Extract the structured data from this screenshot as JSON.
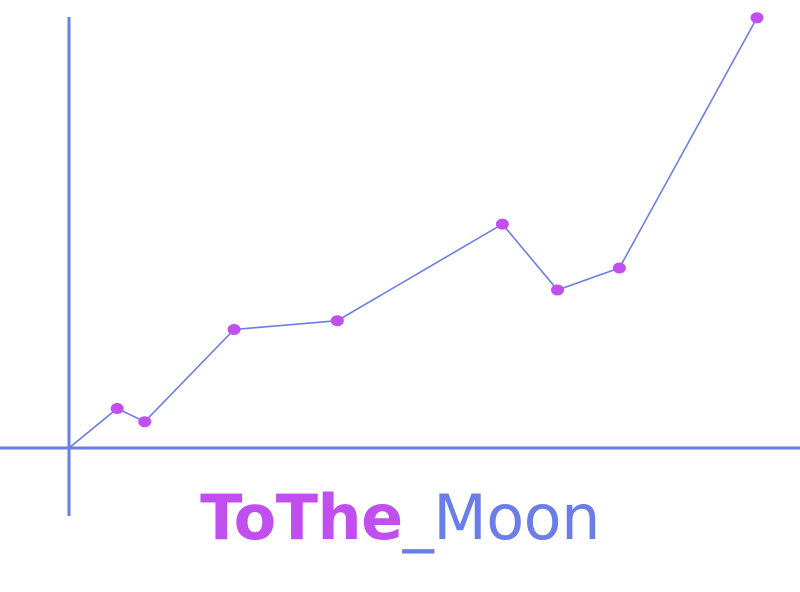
{
  "logo": {
    "part1": "ToThe",
    "part2": "_Moon"
  },
  "colors": {
    "axis": "#6b7de8",
    "line": "#6b7de8",
    "marker": "#c14ff0",
    "logo_primary": "#c14ff0",
    "logo_secondary": "#6b7de8"
  },
  "chart_data": {
    "type": "line",
    "title": "",
    "xlabel": "",
    "ylabel": "",
    "grid": false,
    "x": [
      0,
      0.7,
      1.1,
      2.4,
      3.9,
      6.3,
      7.1,
      8.0,
      10.0
    ],
    "values": [
      0,
      0.9,
      0.6,
      2.7,
      2.9,
      5.1,
      3.6,
      4.1,
      9.8
    ],
    "xlim": [
      0,
      10
    ],
    "ylim": [
      0,
      10
    ]
  }
}
